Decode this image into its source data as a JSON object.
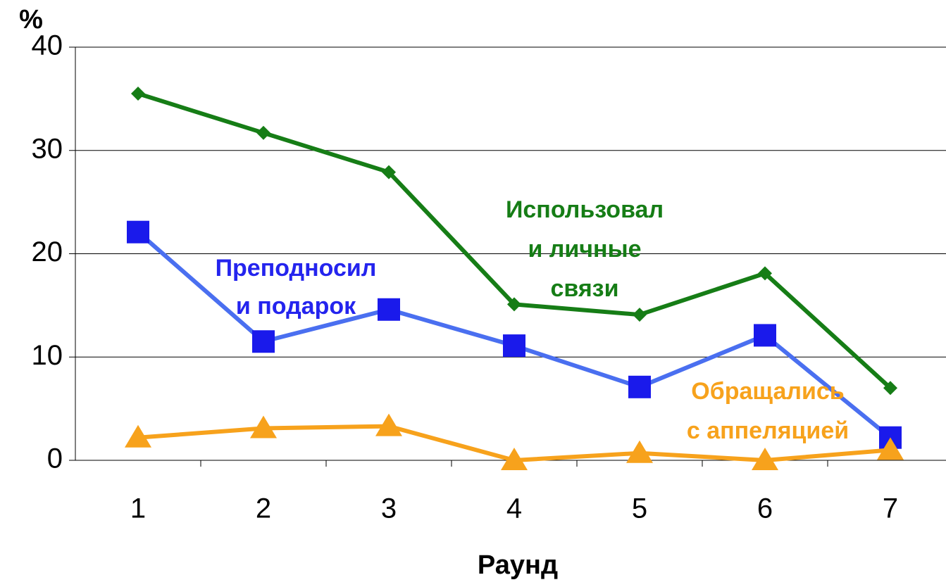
{
  "chart_data": {
    "type": "line",
    "xlabel": "Раунд",
    "ylabel": "%",
    "categories": [
      "1",
      "2",
      "3",
      "4",
      "5",
      "6",
      "7"
    ],
    "ylim": [
      0,
      40
    ],
    "yticks": [
      0,
      10,
      20,
      30,
      40
    ],
    "grid": true,
    "series": [
      {
        "label_lines": [
          "Использовал",
          "и личные",
          "связи"
        ],
        "color": "#167d16",
        "marker": "diamond",
        "marker_color": "#167d16",
        "values": [
          35.5,
          31.7,
          27.9,
          15.1,
          14.1,
          18.1,
          7.0
        ]
      },
      {
        "label_lines": [
          "Преподносил",
          "и подарок"
        ],
        "color": "#4a6ff0",
        "marker": "square",
        "marker_color": "#1a1aeb",
        "label_color": "#2424ee",
        "values": [
          22.1,
          11.5,
          14.6,
          11.1,
          7.1,
          12.1,
          2.2
        ]
      },
      {
        "label_lines": [
          "Обращались",
          "с аппеляцией"
        ],
        "color": "#f7a21c",
        "marker": "triangle",
        "marker_color": "#f7a21c",
        "values": [
          2.2,
          3.1,
          3.3,
          0,
          0.7,
          0,
          1.0
        ]
      }
    ]
  }
}
